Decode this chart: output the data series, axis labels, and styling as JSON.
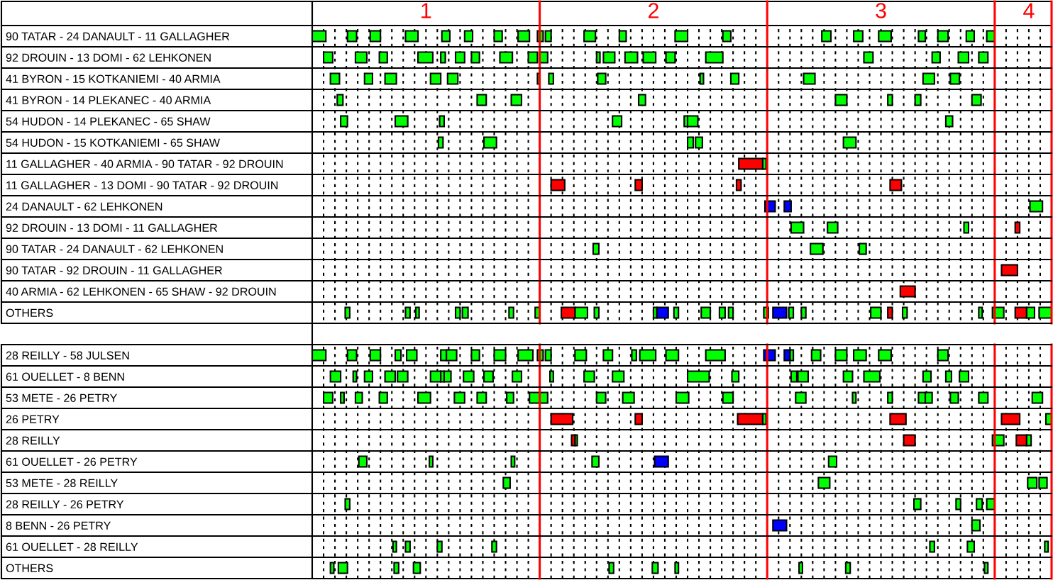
{
  "chart_data": {
    "type": "bar",
    "orientation": "horizontal",
    "categories": [
      "90 TATAR - 24 DANAULT - 11 GALLAGHER",
      "92 DROUIN - 13 DOMI - 62 LEHKONEN",
      "41 BYRON - 15 KOTKANIEMI - 40 ARMIA",
      "41 BYRON - 14 PLEKANEC - 40 ARMIA",
      "54 HUDON - 14 PLEKANEC - 65 SHAW",
      "54 HUDON - 15 KOTKANIEMI - 65 SHAW",
      "11 GALLAGHER - 40 ARMIA - 90 TATAR - 92 DROUIN",
      "11 GALLAGHER - 13 DOMI - 90 TATAR - 92 DROUIN",
      "24 DANAULT - 62 LEHKONEN",
      "92 DROUIN - 13 DOMI - 11 GALLAGHER",
      "90 TATAR - 24 DANAULT - 62 LEHKONEN",
      "90 TATAR - 92 DROUIN - 11 GALLAGHER",
      "40 ARMIA - 62 LEHKONEN - 65 SHAW - 92 DROUIN",
      "OTHERS",
      null,
      "28 REILLY - 58 JULSEN",
      "61 OUELLET - 8 BENN",
      "53 METE - 26 PETRY",
      "26 PETRY",
      "28 REILLY",
      "61 OUELLET - 26 PETRY",
      "53 METE - 28 REILLY",
      "28 REILLY - 26 PETRY",
      "8 BENN - 26 PETRY",
      "61 OUELLET - 28 REILLY",
      "OTHERS"
    ],
    "xlim": [
      0.5,
      3.75
    ],
    "xticks": [
      {
        "value": 0.55,
        "label": null
      },
      {
        "value": 0.6,
        "label": null
      },
      {
        "value": 0.65,
        "label": null
      },
      {
        "value": 0.7,
        "label": null
      },
      {
        "value": 0.75,
        "label": null
      },
      {
        "value": 0.8,
        "label": null
      },
      {
        "value": 0.85,
        "label": null
      },
      {
        "value": 0.9,
        "label": null
      },
      {
        "value": 0.95,
        "label": null
      },
      1,
      {
        "value": 1.05,
        "label": null
      },
      {
        "value": 1.1,
        "label": null
      },
      {
        "value": 1.15,
        "label": null
      },
      {
        "value": 1.2,
        "label": null
      },
      {
        "value": 1.25,
        "label": null
      },
      {
        "value": 1.3,
        "label": null
      },
      {
        "value": 1.35,
        "label": null
      },
      {
        "value": 1.4,
        "label": null
      },
      {
        "value": 1.45,
        "label": null
      },
      {
        "value": 1.55,
        "label": null
      },
      {
        "value": 1.6,
        "label": null
      },
      {
        "value": 1.65,
        "label": null
      },
      {
        "value": 1.7,
        "label": null
      },
      {
        "value": 1.75,
        "label": null
      },
      {
        "value": 1.8,
        "label": null
      },
      {
        "value": 1.85,
        "label": null
      },
      {
        "value": 1.9,
        "label": null
      },
      {
        "value": 1.95,
        "label": null
      },
      2,
      {
        "value": 2.05,
        "label": null
      },
      {
        "value": 2.1,
        "label": null
      },
      {
        "value": 2.15,
        "label": null
      },
      {
        "value": 2.2,
        "label": null
      },
      {
        "value": 2.25,
        "label": null
      },
      {
        "value": 2.3,
        "label": null
      },
      {
        "value": 2.35,
        "label": null
      },
      {
        "value": 2.4,
        "label": null
      },
      {
        "value": 2.45,
        "label": null
      },
      {
        "value": 2.55,
        "label": null
      },
      {
        "value": 2.6,
        "label": null
      },
      {
        "value": 2.65,
        "label": null
      },
      {
        "value": 2.7,
        "label": null
      },
      {
        "value": 2.75,
        "label": null
      },
      {
        "value": 2.8,
        "label": null
      },
      {
        "value": 2.85,
        "label": null
      },
      {
        "value": 2.9,
        "label": null
      },
      {
        "value": 2.95,
        "label": null
      },
      3,
      {
        "value": 3.05,
        "label": null
      },
      {
        "value": 3.1,
        "label": null
      },
      {
        "value": 3.15,
        "label": null
      },
      {
        "value": 3.2,
        "label": null
      },
      {
        "value": 3.25,
        "label": null
      },
      {
        "value": 3.3,
        "label": null
      },
      {
        "value": 3.35,
        "label": null
      },
      {
        "value": 3.4,
        "label": null
      },
      {
        "value": 3.45,
        "label": null
      },
      {
        "value": 3.55,
        "label": null
      },
      {
        "value": 3.6,
        "label": null
      },
      {
        "value": 3.65,
        "label": "4"
      },
      {
        "value": 3.7,
        "label": null
      }
    ],
    "grid": "x",
    "ref_lines": [
      {
        "axis": "x",
        "value": 1.5,
        "color": "#ff0000"
      },
      {
        "axis": "x",
        "value": 2.5,
        "color": "#ff0000"
      },
      {
        "axis": "x",
        "value": 3.5,
        "color": "#ff0000"
      },
      {
        "axis": "x",
        "value": 3.75,
        "color": "#ff0000"
      }
    ],
    "series": [
      {
        "color": "#00ff00",
        "base": [
          0.5,
          0.55,
          0.58,
          0.61,
          0.625,
          1.055,
          2.48,
          null,
          3.655,
          2.605,
          1.735,
          null,
          null,
          0.645,
          null,
          0.5,
          0.58,
          0.55,
          2.48,
          1.655,
          0.705,
          1.34,
          0.645,
          3.4,
          0.855,
          0.58
        ],
        "values": [
          0.06,
          0.04,
          0.04,
          0.025,
          0.03,
          0.02,
          0.015,
          null,
          0.055,
          0.055,
          0.025,
          null,
          null,
          0.02,
          null,
          0.06,
          0.045,
          0.04,
          0.015,
          0.01,
          0.035,
          0.03,
          0.02,
          0.035,
          0.015,
          0.015
        ]
      },
      {
        "color": "#00ff00",
        "base": [
          0.655,
          0.69,
          0.73,
          1.225,
          0.865,
          1.255,
          null,
          null,
          null,
          2.765,
          2.69,
          null,
          null,
          0.91,
          null,
          0.655,
          0.68,
          0.625,
          3.725,
          3.49,
          1.015,
          2.725,
          3.145,
          null,
          0.91,
          0.615
        ],
        "values": [
          0.04,
          0.05,
          0.035,
          0.04,
          0.055,
          0.055,
          null,
          null,
          null,
          0.045,
          0.055,
          null,
          null,
          0.02,
          null,
          0.04,
          0.015,
          0.015,
          0.025,
          0.05,
          0.015,
          0.05,
          0.03,
          null,
          0.02,
          0.04
        ]
      },
      {
        "color": "#00ff00",
        "base": [
          0.755,
          0.795,
          0.82,
          1.375,
          1.06,
          2.15,
          null,
          null,
          null,
          3.365,
          2.905,
          null,
          null,
          0.955,
          null,
          0.755,
          0.73,
          0.69,
          null,
          3.64,
          1.375,
          3.645,
          3.33,
          null,
          1.05,
          0.86
        ],
        "values": [
          0.045,
          0.035,
          0.05,
          0.045,
          0.02,
          0.025,
          null,
          null,
          null,
          0.02,
          0.03,
          null,
          null,
          0.015,
          null,
          0.045,
          0.035,
          0.03,
          null,
          0.02,
          0.015,
          0.04,
          0.02,
          null,
          0.02,
          0.02
        ]
      },
      {
        "color": "#00ff00",
        "base": [
          0.91,
          0.965,
          1.02,
          1.935,
          1.82,
          2.185,
          null,
          null,
          null,
          null,
          null,
          null,
          null,
          1.13,
          null,
          0.865,
          0.82,
          0.795,
          null,
          null,
          1.73,
          3.695,
          3.42,
          null,
          1.29,
          0.945
        ],
        "values": [
          0.055,
          0.065,
          0.045,
          0.03,
          0.04,
          0.03,
          null,
          null,
          null,
          null,
          null,
          null,
          null,
          0.02,
          null,
          0.025,
          0.045,
          0.035,
          null,
          null,
          0.03,
          0.035,
          0.025,
          null,
          0.02,
          0.03
        ]
      },
      {
        "color": "#00ff00",
        "base": [
          1.07,
          1.065,
          1.095,
          2.8,
          2.135,
          2.835,
          null,
          null,
          null,
          null,
          null,
          null,
          null,
          1.16,
          null,
          0.915,
          0.875,
          0.965,
          null,
          null,
          2.77,
          null,
          3.465,
          null,
          3.215,
          1.805
        ],
        "values": [
          0.035,
          0.02,
          0.045,
          0.05,
          0.015,
          0.055,
          null,
          null,
          null,
          null,
          null,
          null,
          null,
          0.025,
          null,
          0.045,
          0.045,
          0.055,
          null,
          null,
          0.035,
          null,
          0.035,
          null,
          0.02,
          0.02
        ]
      },
      {
        "color": "#00ff00",
        "base": [
          1.17,
          1.13,
          1.49,
          3.03,
          2.15,
          null,
          null,
          null,
          null,
          null,
          null,
          null,
          null,
          1.365,
          null,
          1.065,
          1.02,
          1.125,
          null,
          null,
          null,
          null,
          null,
          null,
          3.38,
          1.995
        ],
        "values": [
          0.035,
          0.04,
          0.01,
          0.02,
          0.045,
          null,
          null,
          null,
          null,
          null,
          null,
          null,
          null,
          0.02,
          null,
          0.025,
          0.045,
          0.045,
          null,
          null,
          null,
          null,
          null,
          null,
          0.03,
          0.025
        ]
      },
      {
        "color": "#00ff00",
        "base": [
          1.3,
          1.2,
          1.54,
          3.15,
          3.285,
          null,
          null,
          null,
          null,
          null,
          null,
          null,
          null,
          1.48,
          null,
          1.09,
          1.065,
          1.225,
          null,
          null,
          null,
          null,
          null,
          null,
          3.72,
          2.095
        ],
        "values": [
          0.035,
          0.035,
          0.02,
          0.025,
          0.03,
          null,
          null,
          null,
          null,
          null,
          null,
          null,
          null,
          0.02,
          null,
          0.045,
          0.015,
          0.04,
          null,
          null,
          null,
          null,
          null,
          null,
          0.015,
          0.015
        ]
      },
      {
        "color": "#00ff00",
        "base": [
          1.405,
          1.325,
          1.755,
          3.4,
          null,
          null,
          null,
          null,
          null,
          null,
          null,
          null,
          null,
          1.655,
          null,
          1.2,
          1.08,
          1.355,
          null,
          null,
          null,
          null,
          null,
          null,
          null,
          2.64
        ],
        "values": [
          0.05,
          0.055,
          0.035,
          0.04,
          null,
          null,
          null,
          null,
          null,
          null,
          null,
          null,
          null,
          0.055,
          null,
          0.035,
          0.03,
          0.03,
          null,
          null,
          null,
          null,
          null,
          null,
          null,
          0.015
        ]
      },
      {
        "color": "#00ff00",
        "base": [
          1.49,
          1.45,
          2.205,
          null,
          null,
          null,
          null,
          null,
          null,
          null,
          null,
          null,
          null,
          1.74,
          null,
          1.3,
          1.165,
          1.455,
          null,
          null,
          null,
          null,
          null,
          null,
          null,
          2.845
        ],
        "values": [
          0.025,
          0.04,
          0.015,
          null,
          null,
          null,
          null,
          null,
          null,
          null,
          null,
          null,
          null,
          0.02,
          null,
          0.05,
          0.045,
          0.045,
          null,
          null,
          null,
          null,
          null,
          null,
          null,
          0.02
        ]
      },
      {
        "color": "#00ff00",
        "base": [
          1.525,
          1.5,
          2.34,
          null,
          null,
          null,
          null,
          null,
          null,
          null,
          null,
          null,
          null,
          2.0,
          null,
          1.405,
          1.255,
          1.5,
          null,
          null,
          null,
          null,
          null,
          null,
          null,
          3.455
        ],
        "values": [
          0.025,
          0.035,
          0.035,
          null,
          null,
          null,
          null,
          null,
          null,
          null,
          null,
          null,
          null,
          0.015,
          null,
          0.065,
          0.04,
          0.035,
          null,
          null,
          null,
          null,
          null,
          null,
          null,
          0.015
        ]
      },
      {
        "color": "#00ff00",
        "base": [
          1.695,
          1.75,
          2.66,
          null,
          null,
          null,
          null,
          null,
          null,
          null,
          null,
          null,
          null,
          2.09,
          null,
          1.49,
          1.38,
          1.75,
          null,
          null,
          null,
          null,
          null,
          null,
          null,
          null
        ],
        "values": [
          0.05,
          0.015,
          0.05,
          null,
          null,
          null,
          null,
          null,
          null,
          null,
          null,
          null,
          null,
          0.02,
          null,
          0.025,
          0.04,
          0.04,
          null,
          null,
          null,
          null,
          null,
          null,
          null,
          null
        ]
      },
      {
        "color": "#00ff00",
        "base": [
          1.85,
          1.78,
          3.185,
          null,
          null,
          null,
          null,
          null,
          null,
          null,
          null,
          null,
          null,
          2.21,
          null,
          1.525,
          1.545,
          1.865,
          null,
          null,
          null,
          null,
          null,
          null,
          null,
          null
        ],
        "values": [
          0.03,
          0.05,
          0.05,
          null,
          null,
          null,
          null,
          null,
          null,
          null,
          null,
          null,
          null,
          0.04,
          null,
          0.025,
          0.015,
          0.05,
          null,
          null,
          null,
          null,
          null,
          null,
          null,
          null
        ]
      },
      {
        "color": "#00ff00",
        "base": [
          2.095,
          1.875,
          3.305,
          null,
          null,
          null,
          null,
          null,
          null,
          null,
          null,
          null,
          null,
          2.29,
          null,
          1.655,
          1.695,
          2.1,
          null,
          null,
          null,
          null,
          null,
          null,
          null,
          null
        ],
        "values": [
          0.055,
          0.055,
          0.04,
          null,
          null,
          null,
          null,
          null,
          null,
          null,
          null,
          null,
          null,
          0.025,
          null,
          0.05,
          0.045,
          0.055,
          null,
          null,
          null,
          null,
          null,
          null,
          null,
          null
        ]
      },
      {
        "color": "#00ff00",
        "base": [
          2.305,
          1.955,
          null,
          null,
          null,
          null,
          null,
          null,
          null,
          null,
          null,
          null,
          null,
          2.33,
          null,
          1.78,
          1.82,
          2.305,
          null,
          null,
          null,
          null,
          null,
          null,
          null,
          null
        ],
        "values": [
          0.035,
          0.055,
          null,
          null,
          null,
          null,
          null,
          null,
          null,
          null,
          null,
          null,
          null,
          0.02,
          null,
          0.04,
          0.05,
          0.045,
          null,
          null,
          null,
          null,
          null,
          null,
          null,
          null
        ]
      },
      {
        "color": "#00ff00",
        "base": [
          2.74,
          2.055,
          null,
          null,
          null,
          null,
          null,
          null,
          null,
          null,
          null,
          null,
          null,
          2.485,
          null,
          1.905,
          2.15,
          2.625,
          null,
          null,
          null,
          null,
          null,
          null,
          null,
          null
        ],
        "values": [
          0.04,
          0.04,
          null,
          null,
          null,
          null,
          null,
          null,
          null,
          null,
          null,
          null,
          null,
          0.02,
          null,
          0.02,
          0.095,
          0.045,
          null,
          null,
          null,
          null,
          null,
          null,
          null,
          null
        ]
      },
      {
        "color": "#00ff00",
        "base": [
          2.88,
          2.23,
          null,
          null,
          null,
          null,
          null,
          null,
          null,
          null,
          null,
          null,
          null,
          2.595,
          null,
          1.94,
          2.345,
          2.875,
          null,
          null,
          null,
          null,
          null,
          null,
          null,
          null
        ],
        "values": [
          0.04,
          0.075,
          null,
          null,
          null,
          null,
          null,
          null,
          null,
          null,
          null,
          null,
          null,
          0.02,
          null,
          0.07,
          0.03,
          0.015,
          null,
          null,
          null,
          null,
          null,
          null,
          null,
          null
        ]
      },
      {
        "color": "#00ff00",
        "base": [
          2.99,
          2.925,
          null,
          null,
          null,
          null,
          null,
          null,
          null,
          null,
          null,
          null,
          null,
          2.65,
          null,
          2.055,
          2.605,
          3.03,
          null,
          null,
          null,
          null,
          null,
          null,
          null,
          null
        ],
        "values": [
          0.055,
          0.04,
          null,
          null,
          null,
          null,
          null,
          null,
          null,
          null,
          null,
          null,
          null,
          0.02,
          null,
          0.055,
          0.025,
          0.02,
          null,
          null,
          null,
          null,
          null,
          null,
          null,
          null
        ]
      },
      {
        "color": "#00ff00",
        "base": [
          3.165,
          3.225,
          null,
          null,
          null,
          null,
          null,
          null,
          null,
          null,
          null,
          null,
          null,
          2.955,
          null,
          2.23,
          2.635,
          3.165,
          null,
          null,
          null,
          null,
          null,
          null,
          null,
          null
        ],
        "values": [
          0.03,
          0.035,
          null,
          null,
          null,
          null,
          null,
          null,
          null,
          null,
          null,
          null,
          null,
          0.045,
          null,
          0.085,
          0.045,
          0.03,
          null,
          null,
          null,
          null,
          null,
          null,
          null,
          null
        ]
      },
      {
        "color": "#00ff00",
        "base": [
          3.25,
          3.34,
          null,
          null,
          null,
          null,
          null,
          null,
          null,
          null,
          null,
          null,
          null,
          3.095,
          null,
          2.6,
          2.835,
          3.195,
          null,
          null,
          null,
          null,
          null,
          null,
          null,
          null
        ],
        "values": [
          0.045,
          0.045,
          null,
          null,
          null,
          null,
          null,
          null,
          null,
          null,
          null,
          null,
          null,
          0.02,
          null,
          0.015,
          0.04,
          0.03,
          null,
          null,
          null,
          null,
          null,
          null,
          null,
          null
        ]
      },
      {
        "color": "#00ff00",
        "base": [
          3.375,
          3.43,
          null,
          null,
          null,
          null,
          null,
          null,
          null,
          null,
          null,
          null,
          null,
          3.43,
          null,
          2.695,
          2.925,
          3.305,
          null,
          null,
          null,
          null,
          null,
          null,
          null,
          null
        ],
        "values": [
          0.035,
          0.04,
          null,
          null,
          null,
          null,
          null,
          null,
          null,
          null,
          null,
          null,
          null,
          0.015,
          null,
          0.04,
          0.07,
          0.035,
          null,
          null,
          null,
          null,
          null,
          null,
          null,
          null
        ]
      },
      {
        "color": "#00ff00",
        "base": [
          3.465,
          null,
          null,
          null,
          null,
          null,
          null,
          null,
          null,
          null,
          null,
          null,
          null,
          3.49,
          null,
          2.8,
          3.185,
          3.43,
          null,
          null,
          null,
          null,
          null,
          null,
          null,
          null
        ],
        "values": [
          0.035,
          null,
          null,
          null,
          null,
          null,
          null,
          null,
          null,
          null,
          null,
          null,
          null,
          0.05,
          null,
          0.05,
          0.035,
          0.04,
          null,
          null,
          null,
          null,
          null,
          null,
          null,
          null
        ]
      },
      {
        "color": "#00ff00",
        "base": [
          null,
          null,
          null,
          null,
          null,
          null,
          null,
          null,
          null,
          null,
          null,
          null,
          null,
          3.64,
          null,
          2.88,
          3.285,
          3.665,
          null,
          null,
          null,
          null,
          null,
          null,
          null,
          null
        ],
        "values": [
          null,
          null,
          null,
          null,
          null,
          null,
          null,
          null,
          null,
          null,
          null,
          null,
          null,
          0.035,
          null,
          0.055,
          0.025,
          0.045,
          null,
          null,
          null,
          null,
          null,
          null,
          null,
          null
        ]
      },
      {
        "color": "#00ff00",
        "base": [
          null,
          null,
          null,
          null,
          null,
          null,
          null,
          null,
          null,
          null,
          null,
          null,
          null,
          3.695,
          null,
          2.99,
          3.345,
          null,
          null,
          null,
          null,
          null,
          null,
          null,
          null,
          null
        ],
        "values": [
          null,
          null,
          null,
          null,
          null,
          null,
          null,
          null,
          null,
          null,
          null,
          null,
          null,
          0.055,
          null,
          0.055,
          0.04,
          null,
          null,
          null,
          null,
          null,
          null,
          null,
          null,
          null
        ]
      },
      {
        "color": "#00ff00",
        "base": [
          null,
          null,
          null,
          null,
          null,
          null,
          null,
          null,
          null,
          null,
          null,
          null,
          null,
          null,
          null,
          3.25,
          null,
          null,
          null,
          null,
          null,
          null,
          null,
          null,
          null,
          null
        ],
        "values": [
          null,
          null,
          null,
          null,
          null,
          null,
          null,
          null,
          null,
          null,
          null,
          null,
          null,
          null,
          null,
          0.045,
          null,
          null,
          null,
          null,
          null,
          null,
          null,
          null,
          null,
          null
        ]
      },
      {
        "color": "#ff0000",
        "base": [
          null,
          null,
          null,
          null,
          null,
          null,
          2.375,
          1.55,
          null,
          3.59,
          null,
          3.53,
          3.085,
          1.595,
          null,
          null,
          null,
          null,
          1.55,
          1.64,
          null,
          null,
          null,
          null,
          null,
          null
        ],
        "values": [
          null,
          null,
          null,
          null,
          null,
          null,
          0.105,
          0.06,
          null,
          0.02,
          null,
          0.07,
          0.065,
          0.06,
          null,
          null,
          null,
          null,
          0.095,
          0.015,
          null,
          null,
          null,
          null,
          null,
          null
        ]
      },
      {
        "color": "#ff0000",
        "base": [
          null,
          null,
          null,
          null,
          null,
          null,
          null,
          1.92,
          null,
          null,
          null,
          null,
          null,
          3.03,
          null,
          null,
          null,
          null,
          1.92,
          3.1,
          null,
          null,
          null,
          null,
          null,
          null
        ],
        "values": [
          null,
          null,
          null,
          null,
          null,
          null,
          null,
          0.03,
          null,
          null,
          null,
          null,
          null,
          0.02,
          null,
          null,
          null,
          null,
          0.03,
          0.05,
          null,
          null,
          null,
          null,
          null,
          null
        ]
      },
      {
        "color": "#ff0000",
        "base": [
          null,
          null,
          null,
          null,
          null,
          null,
          null,
          2.365,
          null,
          null,
          null,
          null,
          null,
          3.59,
          null,
          null,
          null,
          null,
          2.37,
          3.595,
          null,
          null,
          null,
          null,
          null,
          null
        ],
        "values": [
          null,
          null,
          null,
          null,
          null,
          null,
          null,
          0.02,
          null,
          null,
          null,
          null,
          null,
          0.05,
          null,
          null,
          null,
          null,
          0.11,
          0.045,
          null,
          null,
          null,
          null,
          null,
          null
        ]
      },
      {
        "color": "#ff0000",
        "base": [
          null,
          null,
          null,
          null,
          null,
          null,
          null,
          3.04,
          null,
          null,
          null,
          null,
          null,
          null,
          null,
          null,
          null,
          null,
          3.04,
          null,
          null,
          null,
          null,
          null,
          null,
          null
        ],
        "values": [
          null,
          null,
          null,
          null,
          null,
          null,
          null,
          0.05,
          null,
          null,
          null,
          null,
          null,
          null,
          null,
          null,
          null,
          null,
          0.07,
          null,
          null,
          null,
          null,
          null,
          null,
          null
        ]
      },
      {
        "color": "#ff0000",
        "base": [
          null,
          null,
          null,
          null,
          null,
          null,
          null,
          null,
          null,
          null,
          null,
          null,
          null,
          null,
          null,
          null,
          null,
          null,
          3.53,
          null,
          null,
          null,
          null,
          null,
          null,
          null
        ],
        "values": [
          null,
          null,
          null,
          null,
          null,
          null,
          null,
          null,
          null,
          null,
          null,
          null,
          null,
          null,
          null,
          null,
          null,
          null,
          0.08,
          null,
          null,
          null,
          null,
          null,
          null,
          null
        ]
      },
      {
        "color": "#0000ff",
        "base": [
          null,
          null,
          null,
          null,
          null,
          null,
          null,
          null,
          2.49,
          null,
          null,
          null,
          null,
          2.015,
          null,
          2.485,
          null,
          null,
          null,
          null,
          2.005,
          null,
          null,
          2.525,
          null,
          null
        ],
        "values": [
          null,
          null,
          null,
          null,
          null,
          null,
          null,
          null,
          0.045,
          null,
          null,
          null,
          null,
          0.05,
          null,
          0.05,
          null,
          null,
          null,
          null,
          0.06,
          null,
          null,
          0.06,
          null,
          null
        ]
      },
      {
        "color": "#0000ff",
        "base": [
          null,
          null,
          null,
          null,
          null,
          null,
          null,
          null,
          2.575,
          null,
          null,
          null,
          null,
          2.525,
          null,
          2.575,
          null,
          null,
          null,
          null,
          null,
          null,
          null,
          null,
          null,
          null
        ],
        "values": [
          null,
          null,
          null,
          null,
          null,
          null,
          null,
          null,
          0.03,
          null,
          null,
          null,
          null,
          0.06,
          null,
          0.025,
          null,
          null,
          null,
          null,
          null,
          null,
          null,
          null,
          null,
          null
        ]
      }
    ]
  }
}
